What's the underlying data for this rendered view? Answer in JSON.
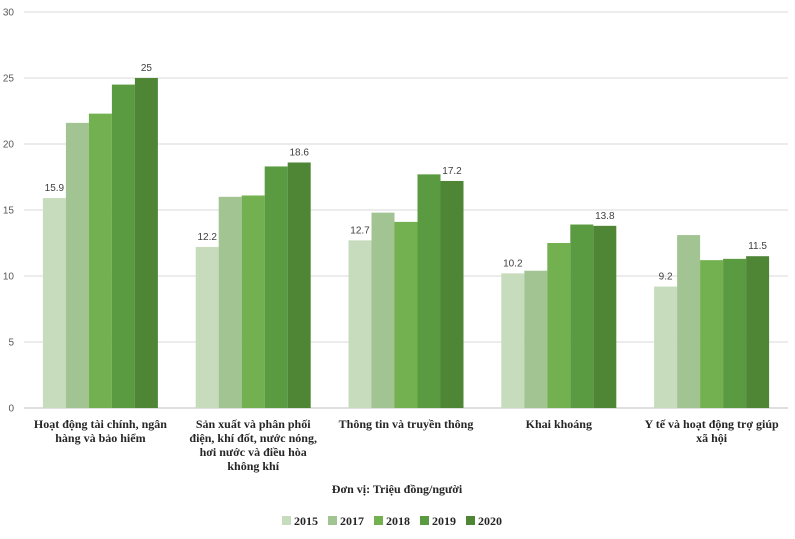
{
  "chart_data": {
    "type": "bar",
    "title": "",
    "ylabel": "",
    "unit_note": "Đơn vị: Triệu đồng/người",
    "ylim": [
      0,
      30
    ],
    "yticks": [
      0,
      5,
      10,
      15,
      20,
      25,
      30
    ],
    "grid": true,
    "legend_position": "bottom",
    "categories": [
      [
        "Hoạt động tài chính, ngân",
        "hàng và bảo hiểm"
      ],
      [
        "Sản xuất và phân phối",
        "điện, khí đốt, nước nóng,",
        "hơi nước và điều hòa",
        "không khí"
      ],
      [
        "Thông tin và truyền thông"
      ],
      [
        "Khai khoáng"
      ],
      [
        "Y tế và hoạt động trợ giúp",
        "xã hội"
      ]
    ],
    "series": [
      {
        "name": "2015",
        "color": "#c6dcbc",
        "values": [
          15.9,
          12.2,
          12.7,
          10.2,
          9.2
        ]
      },
      {
        "name": "2017",
        "color": "#a2c493",
        "values": [
          21.6,
          16.0,
          14.8,
          10.4,
          13.1
        ]
      },
      {
        "name": "2018",
        "color": "#72b050",
        "values": [
          22.3,
          16.1,
          14.1,
          12.5,
          11.2
        ]
      },
      {
        "name": "2019",
        "color": "#5a9a40",
        "values": [
          24.5,
          18.3,
          17.7,
          13.9,
          11.3
        ]
      },
      {
        "name": "2020",
        "color": "#4e8636",
        "values": [
          25,
          18.6,
          17.2,
          13.8,
          11.5
        ]
      }
    ],
    "data_labels": [
      {
        "series": 0,
        "category": 0,
        "text": "15.9"
      },
      {
        "series": 4,
        "category": 0,
        "text": "25"
      },
      {
        "series": 0,
        "category": 1,
        "text": "12.2"
      },
      {
        "series": 4,
        "category": 1,
        "text": "18.6"
      },
      {
        "series": 0,
        "category": 2,
        "text": "12.7"
      },
      {
        "series": 4,
        "category": 2,
        "text": "17.2"
      },
      {
        "series": 0,
        "category": 3,
        "text": "10.2"
      },
      {
        "series": 4,
        "category": 3,
        "text": "13.8"
      },
      {
        "series": 0,
        "category": 4,
        "text": "9.2"
      },
      {
        "series": 4,
        "category": 4,
        "text": "11.5"
      }
    ]
  }
}
